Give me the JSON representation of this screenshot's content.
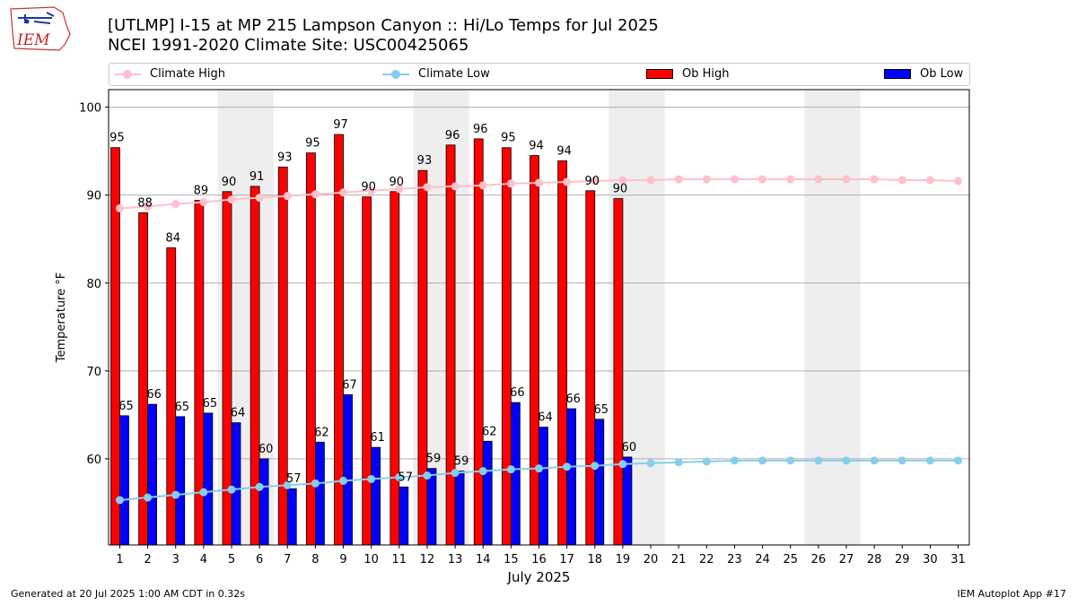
{
  "header": {
    "title_line1": "[UTLMP] I-15 at MP 215 Lampson Canyon  :: Hi/Lo Temps for Jul 2025",
    "title_line2": "NCEI 1991-2020 Climate Site: USC00425065",
    "logo_text": "IEM"
  },
  "footer": {
    "generated": "Generated at 20 Jul 2025 1:00 AM CDT in 0.32s",
    "app": "IEM Autoplot App #17"
  },
  "legend": {
    "climate_high": "Climate High",
    "climate_low": "Climate Low",
    "ob_high": "Ob High",
    "ob_low": "Ob Low"
  },
  "colors": {
    "ob_high": "#ff0000",
    "ob_low": "#0000ff",
    "climate_high": "#ffc0cb",
    "climate_low": "#87ceeb",
    "weekend_shade": "#eeeeee",
    "grid": "#b0b0b0"
  },
  "chart_data": {
    "type": "bar",
    "xlabel": "July 2025",
    "ylabel": "Temperature °F",
    "ylim": [
      50.2,
      102
    ],
    "yticks": [
      60,
      70,
      80,
      90,
      100
    ],
    "grid": "horizontal",
    "legend_position": "top",
    "days": [
      1,
      2,
      3,
      4,
      5,
      6,
      7,
      8,
      9,
      10,
      11,
      12,
      13,
      14,
      15,
      16,
      17,
      18,
      19,
      20,
      21,
      22,
      23,
      24,
      25,
      26,
      27,
      28,
      29,
      30,
      31
    ],
    "shaded_day_ranges": [
      [
        5,
        6
      ],
      [
        12,
        13
      ],
      [
        19,
        20
      ],
      [
        26,
        27
      ]
    ],
    "series": [
      {
        "name": "Ob High",
        "kind": "bar",
        "values": [
          95.4,
          88,
          84,
          89.4,
          90.4,
          91,
          93.2,
          94.8,
          96.9,
          89.8,
          90.4,
          92.8,
          95.7,
          96.4,
          95.4,
          94.5,
          93.9,
          90.5,
          89.6
        ],
        "labels": [
          "95",
          "88",
          "84",
          "89",
          "90",
          "91",
          "93",
          "95",
          "97",
          "90",
          "90",
          "93",
          "96",
          "96",
          "95",
          "94",
          "94",
          "90",
          "90"
        ]
      },
      {
        "name": "Ob Low",
        "kind": "bar",
        "values": [
          64.9,
          66.2,
          64.8,
          65.2,
          64.1,
          60,
          56.6,
          61.9,
          67.3,
          61.3,
          56.8,
          58.9,
          58.6,
          62,
          66.4,
          63.6,
          65.7,
          64.5,
          60.2
        ],
        "labels": [
          "65",
          "66",
          "65",
          "65",
          "64",
          "60",
          "57",
          "62",
          "67",
          "61",
          "57",
          "59",
          "59",
          "62",
          "66",
          "64",
          "66",
          "65",
          "60"
        ]
      },
      {
        "name": "Climate High",
        "kind": "line",
        "values": [
          88.5,
          88.7,
          89,
          89.2,
          89.5,
          89.7,
          89.9,
          90.1,
          90.3,
          90.5,
          90.7,
          90.9,
          91.0,
          91.1,
          91.3,
          91.4,
          91.5,
          91.6,
          91.7,
          91.7,
          91.8,
          91.8,
          91.8,
          91.8,
          91.8,
          91.8,
          91.8,
          91.8,
          91.7,
          91.7,
          91.6
        ]
      },
      {
        "name": "Climate Low",
        "kind": "line",
        "values": [
          55.3,
          55.6,
          55.9,
          56.2,
          56.5,
          56.8,
          57.0,
          57.2,
          57.5,
          57.7,
          57.9,
          58.1,
          58.4,
          58.6,
          58.8,
          58.9,
          59.1,
          59.2,
          59.4,
          59.5,
          59.6,
          59.7,
          59.8,
          59.8,
          59.8,
          59.8,
          59.8,
          59.8,
          59.8,
          59.8,
          59.8
        ]
      }
    ]
  }
}
